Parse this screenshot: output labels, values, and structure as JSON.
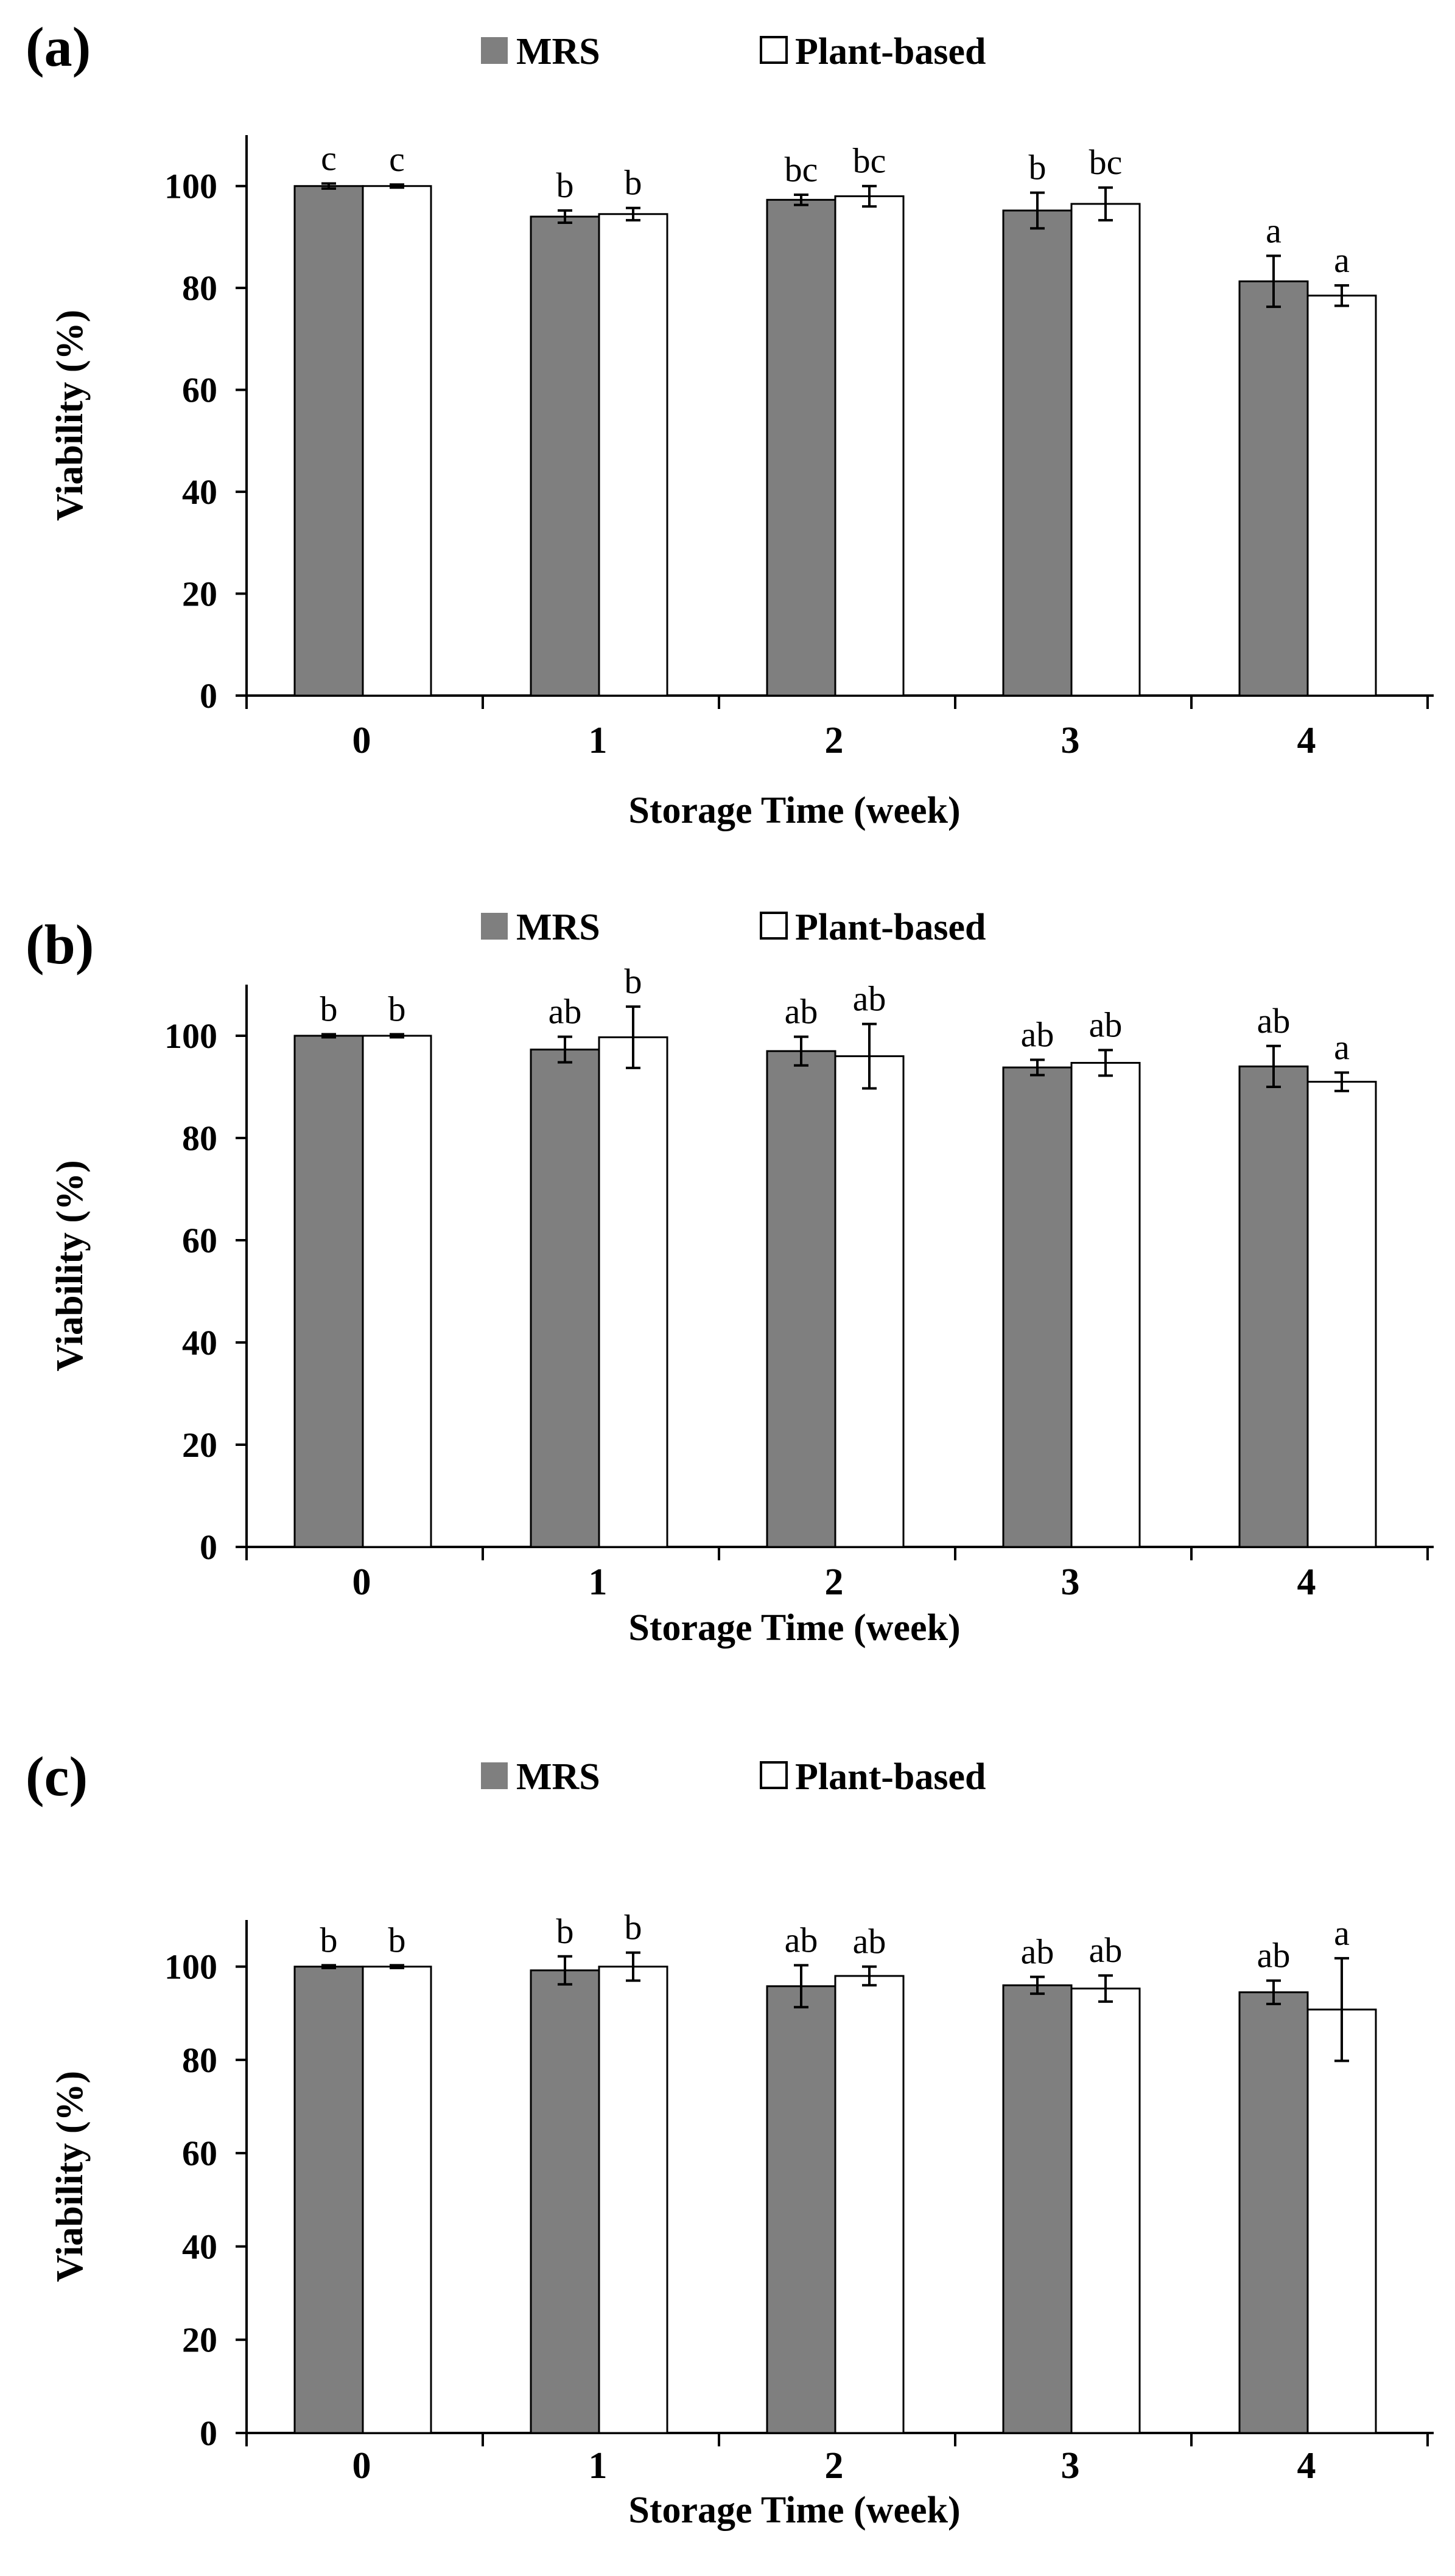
{
  "legend": {
    "series1": "MRS",
    "series2": "Plant-based"
  },
  "colors": {
    "mrs": "#7f7f7f",
    "plant": "#ffffff",
    "edge": "#000000"
  },
  "chart_data": [
    {
      "panel": "(a)",
      "type": "bar",
      "categories": [
        "0",
        "1",
        "2",
        "3",
        "4"
      ],
      "xlabel": "Storage Time (week)",
      "ylabel": "Viability (%)",
      "ylim": [
        0,
        110
      ],
      "yticks": [
        0,
        20,
        40,
        60,
        80,
        100
      ],
      "series": [
        {
          "name": "MRS",
          "values": [
            100,
            94,
            97.3,
            95.2,
            81.3
          ],
          "errors": [
            0.5,
            1.2,
            1.0,
            3.5,
            5.0
          ],
          "labels": [
            "c",
            "b",
            "bc",
            "b",
            "a"
          ]
        },
        {
          "name": "Plant-based",
          "values": [
            100,
            94.5,
            98,
            96.5,
            78.5
          ],
          "errors": [
            0.3,
            1.2,
            2.0,
            3.2,
            2.0
          ],
          "labels": [
            "c",
            "b",
            "bc",
            "bc",
            "a"
          ]
        }
      ]
    },
    {
      "panel": "(b)",
      "type": "bar",
      "categories": [
        "0",
        "1",
        "2",
        "3",
        "4"
      ],
      "xlabel": "Storage Time (week)",
      "ylabel": "Viability (%)",
      "ylim": [
        0,
        110
      ],
      "yticks": [
        0,
        20,
        40,
        60,
        80,
        100
      ],
      "series": [
        {
          "name": "MRS",
          "values": [
            100,
            97.3,
            97,
            93.8,
            94
          ],
          "errors": [
            0.3,
            2.5,
            2.8,
            1.5,
            4.0
          ],
          "labels": [
            "b",
            "ab",
            "ab",
            "ab",
            "ab"
          ]
        },
        {
          "name": "Plant-based",
          "values": [
            100,
            99.7,
            96,
            94.7,
            91
          ],
          "errors": [
            0.3,
            6.0,
            6.3,
            2.5,
            1.8
          ],
          "labels": [
            "b",
            "b",
            "ab",
            "ab",
            "a"
          ]
        }
      ]
    },
    {
      "panel": "(c)",
      "type": "bar",
      "categories": [
        "0",
        "1",
        "2",
        "3",
        "4"
      ],
      "xlabel": "Storage Time (week)",
      "ylabel": "Viability (%)",
      "ylim": [
        0,
        110
      ],
      "yticks": [
        0,
        20,
        40,
        60,
        80,
        100
      ],
      "series": [
        {
          "name": "MRS",
          "values": [
            100,
            99.2,
            95.8,
            96,
            94.5
          ],
          "errors": [
            0.3,
            3.0,
            4.5,
            1.8,
            2.5
          ],
          "labels": [
            "b",
            "b",
            "ab",
            "ab",
            "ab"
          ]
        },
        {
          "name": "Plant-based",
          "values": [
            100,
            100,
            98,
            95.3,
            90.8
          ],
          "errors": [
            0.3,
            3.0,
            2.0,
            2.8,
            11.0
          ],
          "labels": [
            "b",
            "b",
            "ab",
            "ab",
            "a"
          ]
        }
      ]
    }
  ]
}
